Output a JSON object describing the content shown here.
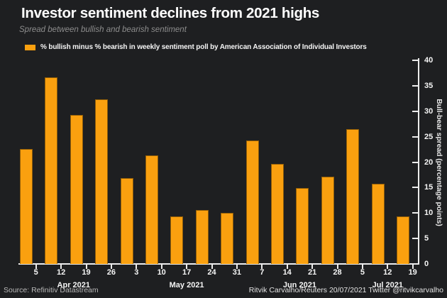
{
  "chart_data": {
    "type": "bar",
    "title": "Investor sentiment declines from 2021 highs",
    "subtitle": "Spread between bullish and bearish sentiment",
    "legend_label": "% bullish minus % bearish in weekly sentiment poll by American Association of Individual Investors",
    "ylabel": "Bull-bear spread (percentage points)",
    "xlabel": "",
    "ylim": [
      0,
      40
    ],
    "yticks": [
      0,
      5,
      10,
      15,
      20,
      25,
      30,
      35,
      40
    ],
    "legend_position": "top-left",
    "grid": false,
    "x_groups": [
      {
        "month": "Apr 2021",
        "days": [
          "5",
          "12",
          "19",
          "26"
        ]
      },
      {
        "month": "May 2021",
        "days": [
          "3",
          "10",
          "17",
          "24",
          "31"
        ]
      },
      {
        "month": "Jun 2021",
        "days": [
          "7",
          "14",
          "21",
          "28"
        ]
      },
      {
        "month": "Jul 2021",
        "days": [
          "5",
          "12",
          "19"
        ]
      }
    ],
    "values": [
      22.6,
      36.6,
      29.3,
      32.4,
      16.9,
      21.3,
      9.4,
      10.6,
      10.0,
      24.3,
      19.6,
      14.9,
      17.2,
      26.5,
      15.8,
      9.4
    ]
  },
  "footer": {
    "source": "Source: Refinitiv Datastream",
    "credit": "Ritvik Carvalho/Reuters 20/07/2021 Twitter @ritvikcarvalho"
  },
  "colors": {
    "bar": "#FAA00F",
    "background": "#1E1F21",
    "axis": "#ECECEC",
    "title_text": "#FFFFFF",
    "subtitle_text": "#8D8D8D"
  }
}
